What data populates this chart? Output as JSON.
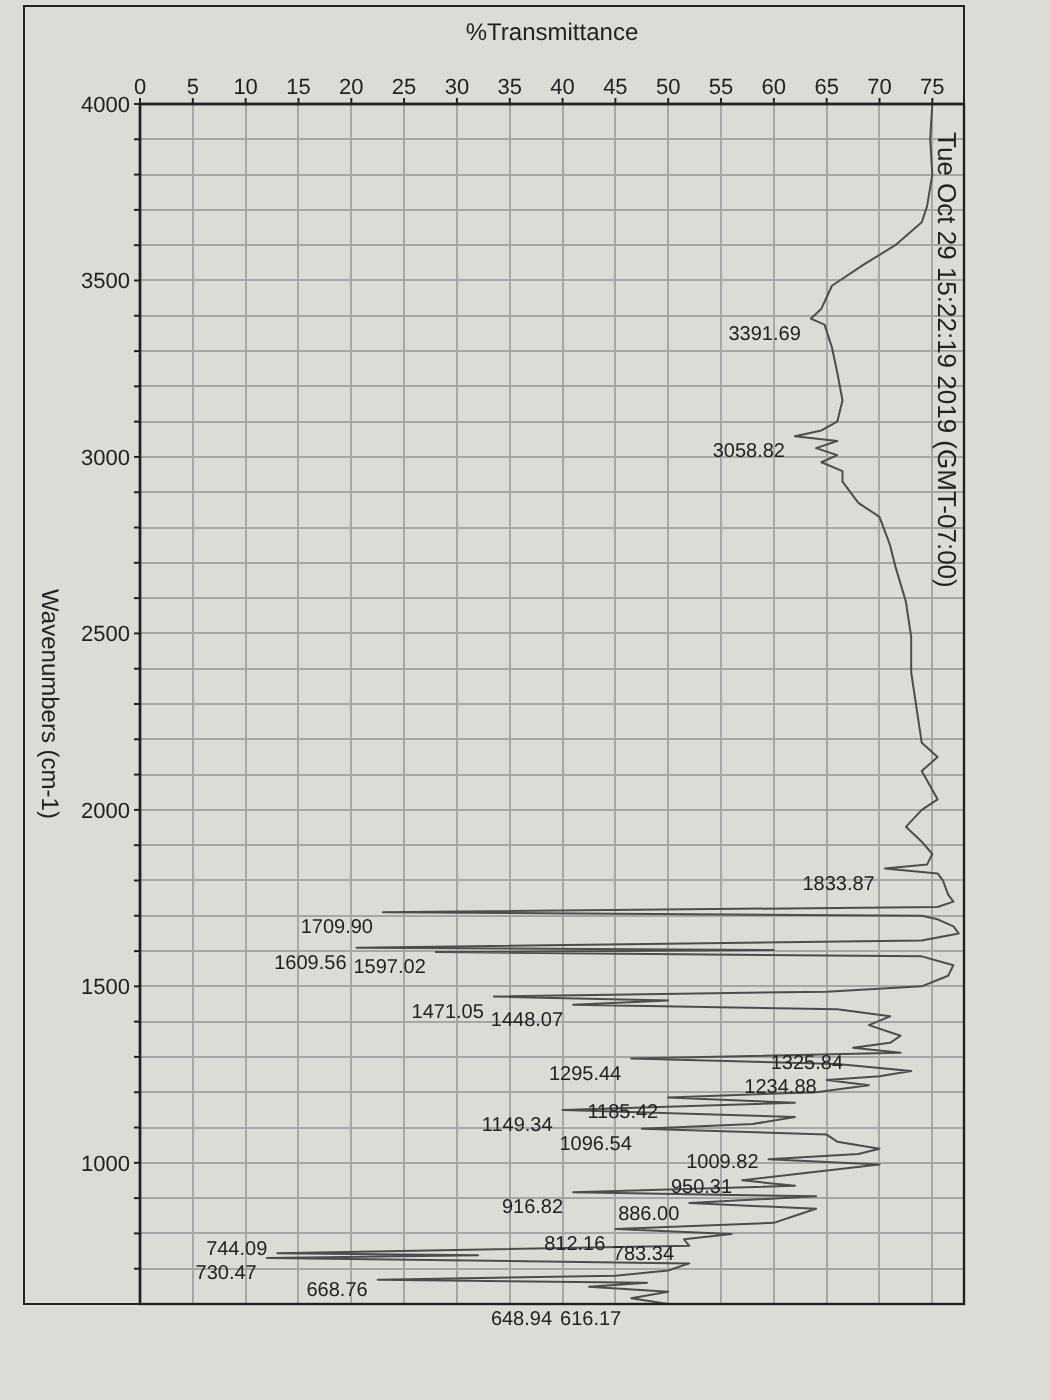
{
  "chart_data": {
    "type": "line",
    "xlabel": "%Transmittance",
    "ylabel": "Wavenumbers (cm-1)",
    "x": [
      75,
      74.8,
      75,
      74.5,
      74,
      71.5,
      68.5,
      65.5,
      64.5,
      63.5,
      64.8,
      65.5,
      66,
      66.5,
      66,
      64.5,
      62,
      66,
      64,
      66,
      64.5,
      66.5,
      66.5,
      68,
      70,
      71,
      71.5,
      72.5,
      73,
      73,
      73.5,
      74,
      75.5,
      74,
      75.5,
      74,
      72.5,
      74,
      75,
      74.5,
      70.5,
      75.5,
      76,
      76.5,
      77,
      75.5,
      23,
      74,
      75.5,
      77,
      77.5,
      74,
      20.5,
      60,
      28,
      74,
      77,
      76.5,
      74,
      65,
      33.5,
      50,
      41,
      66,
      71,
      69,
      72,
      71,
      67.5,
      72,
      46.5,
      66,
      73,
      70,
      65,
      69,
      64,
      50,
      62,
      40,
      62,
      58,
      47.5,
      65,
      66,
      70,
      68,
      59.5,
      70,
      64,
      57,
      62,
      41,
      64,
      52,
      64,
      62,
      60,
      45,
      56,
      51.5,
      52,
      13,
      32,
      12,
      52,
      50,
      45,
      22.5,
      48,
      42.5,
      50,
      46.5,
      50
    ],
    "values": [
      4000,
      3900,
      3800,
      3710,
      3665,
      3600,
      3545,
      3485,
      3420,
      3391.69,
      3375,
      3310,
      3240,
      3160,
      3100,
      3075,
      3058.82,
      3045,
      3025,
      3005,
      2985,
      2960,
      2930,
      2870,
      2830,
      2750,
      2690,
      2590,
      2490,
      2390,
      2290,
      2190,
      2150,
      2110,
      2030,
      2000,
      1952,
      1910,
      1875,
      1845,
      1833.87,
      1820,
      1800,
      1760,
      1740,
      1725,
      1709.9,
      1700,
      1690,
      1670,
      1650,
      1630,
      1609.56,
      1603,
      1597.02,
      1585,
      1560,
      1530,
      1500,
      1485,
      1471.05,
      1460,
      1448.07,
      1435,
      1415,
      1390,
      1360,
      1340,
      1325.84,
      1312,
      1295.44,
      1280,
      1260,
      1245,
      1234.88,
      1220,
      1200,
      1185.42,
      1170,
      1149.34,
      1130,
      1110,
      1096.54,
      1080,
      1060,
      1040,
      1025,
      1009.82,
      995,
      975,
      950.31,
      935,
      916.82,
      905,
      886,
      870,
      850,
      830,
      812.16,
      798,
      783.34,
      765,
      744.09,
      738,
      730.47,
      715,
      695,
      680,
      668.76,
      660,
      648.94,
      635,
      616.17,
      600
    ],
    "color": "#4d4d4d",
    "xlim": [
      0,
      78
    ],
    "xticks": [
      0,
      5,
      10,
      15,
      20,
      25,
      30,
      35,
      40,
      45,
      50,
      55,
      60,
      65,
      70,
      75
    ],
    "ylim": [
      600,
      4000
    ],
    "yticks": [
      4000,
      {
        "value": 3900,
        "label": null
      },
      {
        "value": 3800,
        "label": null
      },
      {
        "value": 3700,
        "label": null
      },
      {
        "value": 3600,
        "label": null
      },
      3500,
      {
        "value": 3400,
        "label": null
      },
      {
        "value": 3300,
        "label": null
      },
      {
        "value": 3200,
        "label": null
      },
      {
        "value": 3100,
        "label": null
      },
      3000,
      {
        "value": 2900,
        "label": null
      },
      {
        "value": 2800,
        "label": null
      },
      {
        "value": 2700,
        "label": null
      },
      {
        "value": 2600,
        "label": null
      },
      2500,
      {
        "value": 2400,
        "label": null
      },
      {
        "value": 2300,
        "label": null
      },
      {
        "value": 2200,
        "label": null
      },
      {
        "value": 2100,
        "label": null
      },
      2000,
      {
        "value": 1900,
        "label": null
      },
      {
        "value": 1800,
        "label": null
      },
      {
        "value": 1700,
        "label": null
      },
      {
        "value": 1600,
        "label": null
      },
      1500,
      {
        "value": 1400,
        "label": null
      },
      {
        "value": 1300,
        "label": null
      },
      {
        "value": 1200,
        "label": null
      },
      {
        "value": 1100,
        "label": null
      },
      1000,
      {
        "value": 900,
        "label": null
      },
      {
        "value": 800,
        "label": null
      },
      {
        "value": 700,
        "label": null
      }
    ],
    "grid": true,
    "annotations": [
      "Tue Oct 29 15:22:19 2019 (GMT-07:00)",
      {
        "text": "3391.69",
        "x": 63.5,
        "y": 3391.69
      },
      {
        "text": "3058.82",
        "x": 62,
        "y": 3058.82
      },
      {
        "text": "1833.87",
        "x": 70.5,
        "y": 1833.87
      },
      {
        "text": "1709.90",
        "x": 23,
        "y": 1709.9
      },
      {
        "text": "1609.56",
        "x": 20.5,
        "y": 1609.56
      },
      {
        "text": "1597.02",
        "x": 28,
        "y": 1597.02
      },
      {
        "text": "1471.05",
        "x": 33.5,
        "y": 1471.05
      },
      {
        "text": "1448.07",
        "x": 41,
        "y": 1448.07
      },
      {
        "text": "1325.84",
        "x": 67.5,
        "y": 1325.84
      },
      {
        "text": "1295.44",
        "x": 46.5,
        "y": 1295.44
      },
      {
        "text": "1234.88",
        "x": 65,
        "y": 1234.88
      },
      {
        "text": "1185.42",
        "x": 50,
        "y": 1185.42
      },
      {
        "text": "1149.34",
        "x": 40,
        "y": 1149.34
      },
      {
        "text": "1096.54",
        "x": 47.5,
        "y": 1096.54
      },
      {
        "text": "1009.82",
        "x": 59.5,
        "y": 1009.82
      },
      {
        "text": "950.31",
        "x": 57,
        "y": 950.31
      },
      {
        "text": "916.82",
        "x": 41,
        "y": 916.82
      },
      {
        "text": "886.00",
        "x": 52,
        "y": 886
      },
      {
        "text": "812.16",
        "x": 45,
        "y": 812.16
      },
      {
        "text": "783.34",
        "x": 51.5,
        "y": 783.34
      },
      {
        "text": "744.09",
        "x": 13,
        "y": 744.09
      },
      {
        "text": "730.47",
        "x": 12,
        "y": 730.47
      },
      {
        "text": "668.76",
        "x": 22.5,
        "y": 668.76
      },
      {
        "text": "648.94",
        "x": 42.5,
        "y": 648.94
      },
      {
        "text": "616.17",
        "x": 46.5,
        "y": 616.17
      }
    ]
  }
}
